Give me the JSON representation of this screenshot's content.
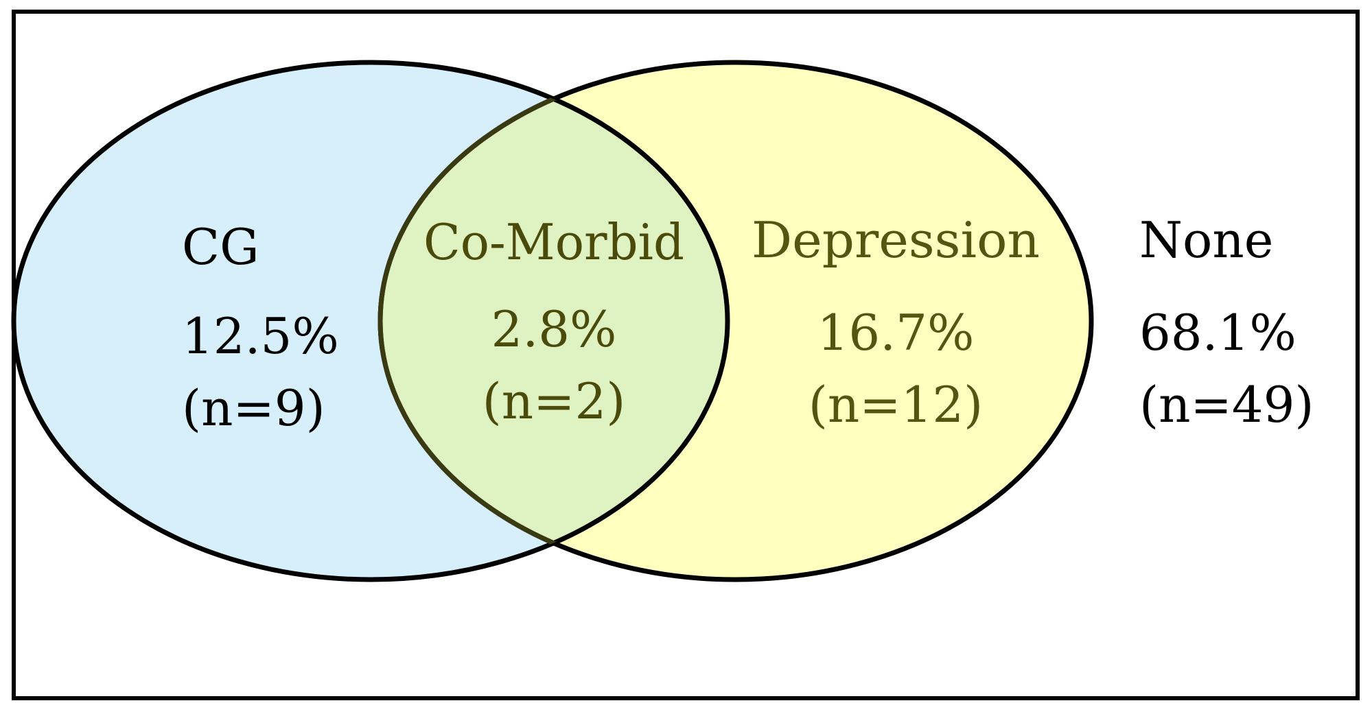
{
  "diagram": {
    "type": "venn",
    "colors": {
      "frame": "#000000",
      "cg_fill": "#d6effa",
      "depression_fill": "#ffffc0",
      "overlap_fill": "#dff2c2",
      "overlap_text": "#4a4a0a",
      "depression_text": "#555510",
      "default_text": "#000000"
    },
    "regions": [
      {
        "id": "cg",
        "label": "CG",
        "percent": "12.5%",
        "count": "(n=9)"
      },
      {
        "id": "comorbid",
        "label": "Co-Morbid",
        "percent": "2.8%",
        "count": "(n=2)"
      },
      {
        "id": "depression",
        "label": "Depression",
        "percent": "16.7%",
        "count": "(n=12)"
      },
      {
        "id": "none",
        "label": "None",
        "percent": "68.1%",
        "count": "(n=49)"
      }
    ]
  }
}
